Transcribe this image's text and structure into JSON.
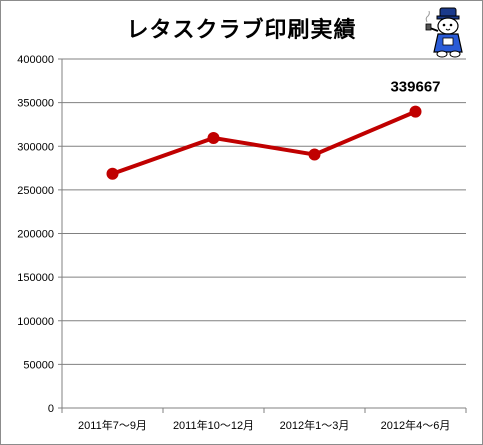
{
  "chart_data": {
    "type": "line",
    "title": "レタスクラブ印刷実績",
    "categories": [
      "2011年7～9月",
      "2011年10～12月",
      "2012年1～3月",
      "2012年4～6月"
    ],
    "series": [
      {
        "values": [
          268500,
          309500,
          290500,
          339667
        ],
        "color": "#c00000"
      }
    ],
    "ylim": [
      0,
      400000
    ],
    "yticks": [
      0,
      50000,
      100000,
      150000,
      200000,
      250000,
      300000,
      350000,
      400000
    ],
    "annotations": [
      {
        "category_index": 3,
        "text": "339667"
      }
    ],
    "grid": true,
    "legend": "none"
  },
  "colors": {
    "line": "#c00000",
    "grid": "#808080",
    "axis": "#808080"
  },
  "mascot": {
    "icon": "cat-mascot-icon"
  }
}
